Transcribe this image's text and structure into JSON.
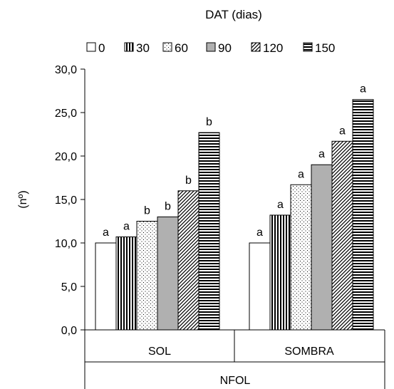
{
  "chart_data": {
    "type": "bar",
    "title": "",
    "legend_title": "DAT (dias)",
    "legend_position": "top",
    "ylabel": "(nº)",
    "xlabel": "NFOL",
    "ylim": [
      0,
      30
    ],
    "yticks": [
      "0,0",
      "5,0",
      "10,0",
      "15,0",
      "20,0",
      "25,0",
      "30,0"
    ],
    "grid": false,
    "categories": [
      "SOL",
      "SOMBRA"
    ],
    "series": [
      {
        "name": "0",
        "pattern": "solid-white",
        "values": [
          10.0,
          10.0
        ],
        "labels": [
          "a",
          "a"
        ]
      },
      {
        "name": "30",
        "pattern": "vertical-lines",
        "values": [
          10.7,
          13.2
        ],
        "labels": [
          "a",
          "a"
        ]
      },
      {
        "name": "60",
        "pattern": "dots",
        "values": [
          12.5,
          16.7
        ],
        "labels": [
          "b",
          "a"
        ]
      },
      {
        "name": "90",
        "pattern": "solid-gray",
        "values": [
          13.0,
          19.0
        ],
        "labels": [
          "b",
          "a"
        ]
      },
      {
        "name": "120",
        "pattern": "diagonal-lines",
        "values": [
          16.0,
          21.7
        ],
        "labels": [
          "b",
          "a"
        ]
      },
      {
        "name": "150",
        "pattern": "horizontal-lines",
        "values": [
          22.7,
          26.5
        ],
        "labels": [
          "b",
          "a"
        ]
      }
    ],
    "colors": {
      "axis": "#000000",
      "gray_fill": "#b0b0b0",
      "bar_stroke": "#000000"
    }
  }
}
